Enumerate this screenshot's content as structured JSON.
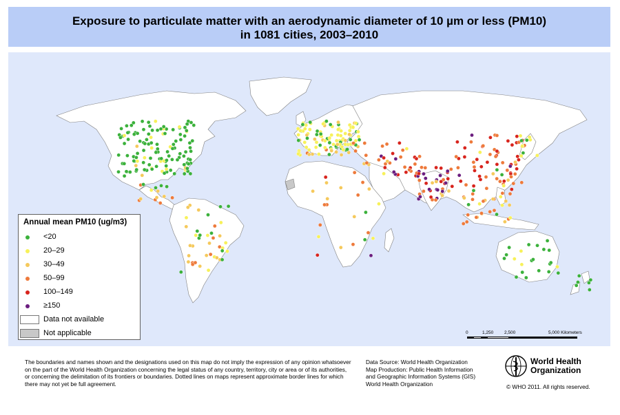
{
  "title": {
    "line1": "Exposure to particulate matter with an aerodynamic diameter of 10 µm or less (PM10)",
    "line2": "in 1081 cities, 2003–2010"
  },
  "colors": {
    "ocean": "#dfe8fb",
    "land": "#ffffff",
    "border": "#7f7f7f",
    "not_applicable": "#c8c8c8",
    "title_band": "#b9cdf7"
  },
  "legend": {
    "title": "Annual mean PM10 (ug/m3)",
    "classes": [
      {
        "label": "<20",
        "color": "#3bb13b"
      },
      {
        "label": "20–29",
        "color": "#f7f15a"
      },
      {
        "label": "30–49",
        "color": "#f5c95c"
      },
      {
        "label": "50–99",
        "color": "#ee7a3b"
      },
      {
        "label": "100–149",
        "color": "#d8241d"
      },
      {
        "label": "≥150",
        "color": "#6b1d7f"
      }
    ],
    "no_data": "Data not available",
    "not_applicable": "Not applicable"
  },
  "scalebar": {
    "ticks": [
      "0",
      "1,250",
      "2,500",
      "5,000 Kilometers"
    ]
  },
  "disclaimer": [
    "The boundaries and names shown and the designations used on this map do not imply the expression of any opinion whatsoever",
    "on the part of the World Health Organization concerning the legal status of any country, territory, city or area or of its authorities,",
    "or concerning the delimitation of its frontiers or boundaries.  Dotted lines on maps represent approximate border lines for which",
    "there may not yet be full agreement."
  ],
  "source": [
    "Data Source: World Health Organization",
    "Map Production: Public Health Information",
    "and Geographic Information Systems (GIS)",
    "World Health Organization"
  ],
  "logo": {
    "line1": "World Health",
    "line2": "Organization"
  },
  "copyright": "© WHO 2011. All rights reserved."
}
